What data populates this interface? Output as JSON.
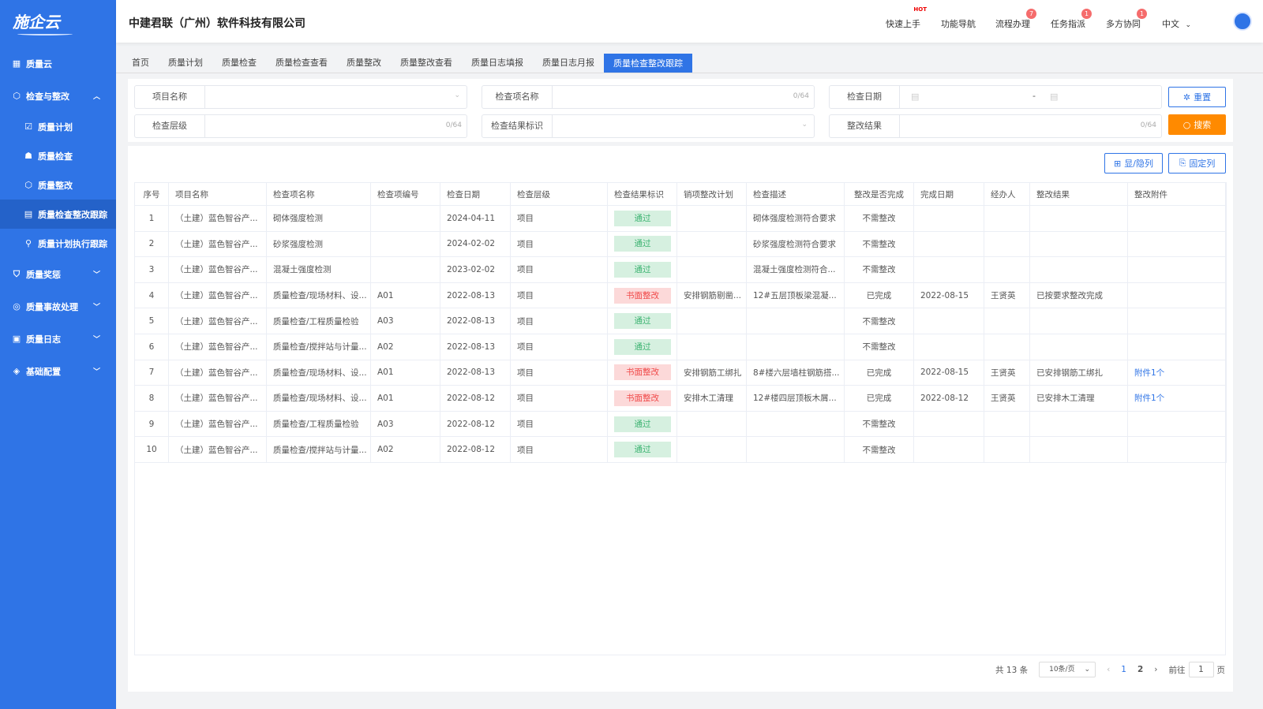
{
  "sidebar": {
    "logo": "施企云",
    "items": [
      {
        "label": "质量云",
        "icon": "grid-icon",
        "level": 0
      },
      {
        "label": "检查与整改",
        "icon": "cube-icon",
        "level": 0,
        "expanded": true
      },
      {
        "label": "质量计划",
        "icon": "clipboard-check-icon",
        "level": 1
      },
      {
        "label": "质量检查",
        "icon": "hierarchy-icon",
        "level": 1
      },
      {
        "label": "质量整改",
        "icon": "cube-small-icon",
        "level": 1
      },
      {
        "label": "质量检查整改跟踪",
        "icon": "calendar-grid-icon",
        "level": 1,
        "active": true
      },
      {
        "label": "质量计划执行跟踪",
        "icon": "tracking-icon",
        "level": 1
      },
      {
        "label": "质量奖惩",
        "icon": "shield-icon",
        "level": 0,
        "expanded": false
      },
      {
        "label": "质量事故处理",
        "icon": "target-icon",
        "level": 0,
        "expanded": false
      },
      {
        "label": "质量日志",
        "icon": "log-icon",
        "level": 0,
        "expanded": false
      },
      {
        "label": "基础配置",
        "icon": "layers-icon",
        "level": 0,
        "expanded": false
      }
    ]
  },
  "header": {
    "company": "中建君联（广州）软件科技有限公司",
    "nav": [
      {
        "label": "快速上手",
        "badge": "HOT"
      },
      {
        "label": "功能导航",
        "badge": ""
      },
      {
        "label": "流程办理",
        "badge": "7"
      },
      {
        "label": "任务指派",
        "badge": "1"
      },
      {
        "label": "多方协同",
        "badge": "1"
      }
    ],
    "language": "中文"
  },
  "tabs": [
    "首页",
    "质量计划",
    "质量检查",
    "质量检查查看",
    "质量整改",
    "质量整改查看",
    "质量日志填报",
    "质量日志月报",
    "质量检查整改跟踪"
  ],
  "filters": {
    "project_name": {
      "label": "项目名称",
      "value": ""
    },
    "item_name": {
      "label": "检查项名称",
      "value": "",
      "count": "0/64"
    },
    "date": {
      "label": "检查日期",
      "separator": "-"
    },
    "level": {
      "label": "检查层级",
      "value": "",
      "count": "0/64"
    },
    "result_flag": {
      "label": "检查结果标识",
      "value": ""
    },
    "rectify_result": {
      "label": "整改结果",
      "value": "",
      "count": "0/64"
    },
    "reset": "重置",
    "search": "搜索"
  },
  "toolbar": {
    "toggle_columns": "显/隐列",
    "fix_columns": "固定列"
  },
  "table": {
    "columns": [
      "序号",
      "项目名称",
      "检查项名称",
      "检查项编号",
      "检查日期",
      "检查层级",
      "检查结果标识",
      "销项整改计划",
      "检查描述",
      "整改是否完成",
      "完成日期",
      "经办人",
      "整改结果",
      "整改附件"
    ],
    "rows": [
      [
        "1",
        "（土建）蓝色智谷产...",
        "砌体强度检测",
        "",
        "2024-04-11",
        "项目",
        "通过",
        "",
        "砌体强度检测符合要求",
        "不需整改",
        "",
        "",
        "",
        ""
      ],
      [
        "2",
        "（土建）蓝色智谷产...",
        "砂浆强度检测",
        "",
        "2024-02-02",
        "项目",
        "通过",
        "",
        "砂浆强度检测符合要求",
        "不需整改",
        "",
        "",
        "",
        ""
      ],
      [
        "3",
        "（土建）蓝色智谷产...",
        "混凝土强度检测",
        "",
        "2023-02-02",
        "项目",
        "通过",
        "",
        "混凝土强度检测符合...",
        "不需整改",
        "",
        "",
        "",
        ""
      ],
      [
        "4",
        "（土建）蓝色智谷产...",
        "质量检查/现场材料、设...",
        "A01",
        "2022-08-13",
        "项目",
        "书面整改",
        "安排钢筋剔凿...",
        "12#五层顶板梁混凝...",
        "已完成",
        "2022-08-15",
        "王贤英",
        "已按要求整改完成",
        ""
      ],
      [
        "5",
        "（土建）蓝色智谷产...",
        "质量检查/工程质量检验",
        "A03",
        "2022-08-13",
        "项目",
        "通过",
        "",
        "",
        "不需整改",
        "",
        "",
        "",
        ""
      ],
      [
        "6",
        "（土建）蓝色智谷产...",
        "质量检查/搅拌站与计量...",
        "A02",
        "2022-08-13",
        "项目",
        "通过",
        "",
        "",
        "不需整改",
        "",
        "",
        "",
        ""
      ],
      [
        "7",
        "（土建）蓝色智谷产...",
        "质量检查/现场材料、设...",
        "A01",
        "2022-08-13",
        "项目",
        "书面整改",
        "安排钢筋工绑扎",
        "8#楼六层墙柱钢筋搭...",
        "已完成",
        "2022-08-15",
        "王贤英",
        "已安排钢筋工绑扎",
        "附件1个"
      ],
      [
        "8",
        "（土建）蓝色智谷产...",
        "质量检查/现场材料、设...",
        "A01",
        "2022-08-12",
        "项目",
        "书面整改",
        "安排木工清理",
        "12#楼四层顶板木屑...",
        "已完成",
        "2022-08-12",
        "王贤英",
        "已安排木工清理",
        "附件1个"
      ],
      [
        "9",
        "（土建）蓝色智谷产...",
        "质量检查/工程质量检验",
        "A03",
        "2022-08-12",
        "项目",
        "通过",
        "",
        "",
        "不需整改",
        "",
        "",
        "",
        ""
      ],
      [
        "10",
        "（土建）蓝色智谷产...",
        "质量检查/搅拌站与计量...",
        "A02",
        "2022-08-12",
        "项目",
        "通过",
        "",
        "",
        "不需整改",
        "",
        "",
        "",
        ""
      ]
    ]
  },
  "pagination": {
    "total": "共 13 条",
    "page_size": "10条/页",
    "pages": [
      "1",
      "2"
    ],
    "current": "1",
    "goto_label": "前往",
    "goto_value": "1",
    "page_suffix": "页"
  },
  "colors": {
    "primary": "#2f74e6",
    "search": "#ff8a00",
    "pass": "#3cb371",
    "rectify": "#f04848"
  }
}
